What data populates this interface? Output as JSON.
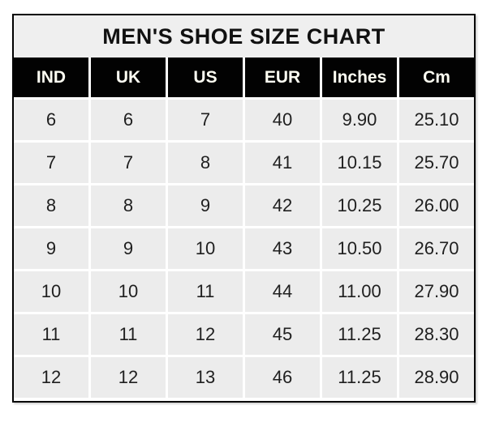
{
  "title": "MEN'S SHOE SIZE CHART",
  "chart_data": {
    "type": "table",
    "title": "MEN'S SHOE SIZE CHART",
    "columns": [
      "IND",
      "UK",
      "US",
      "EUR",
      "Inches",
      "Cm"
    ],
    "rows": [
      [
        "6",
        "6",
        "7",
        "40",
        "9.90",
        "25.10"
      ],
      [
        "7",
        "7",
        "8",
        "41",
        "10.15",
        "25.70"
      ],
      [
        "8",
        "8",
        "9",
        "42",
        "10.25",
        "26.00"
      ],
      [
        "9",
        "9",
        "10",
        "43",
        "10.50",
        "26.70"
      ],
      [
        "10",
        "10",
        "11",
        "44",
        "11.00",
        "27.90"
      ],
      [
        "11",
        "11",
        "12",
        "45",
        "11.25",
        "28.30"
      ],
      [
        "12",
        "12",
        "13",
        "46",
        "11.25",
        "28.90"
      ]
    ],
    "layout": {
      "header_position": "top",
      "grid": "white gridlines between gray cells",
      "outer_border": "black"
    }
  },
  "colors": {
    "page_bg": "#ffffff",
    "border_color": "#000000",
    "title_bg": "#efefef",
    "title_text": "#111111",
    "header_bg": "#020202",
    "header_text": "#fdfdf2",
    "cell_bg": "#ececec",
    "cell_text": "#1f1f1f",
    "gap_color": "#ffffff"
  }
}
